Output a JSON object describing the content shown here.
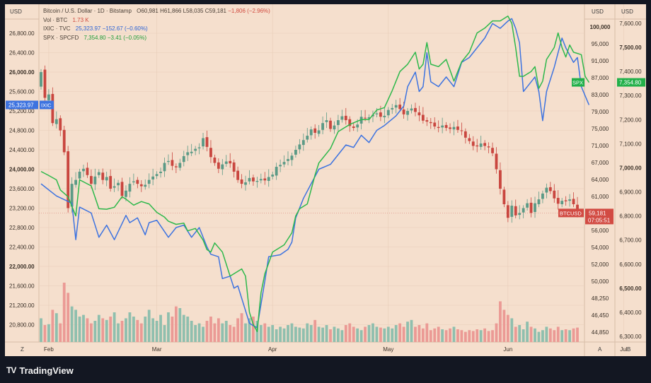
{
  "brand": {
    "logo_text": "TV",
    "name": "TradingView"
  },
  "chart_header": {
    "currency_left": "USD",
    "currency_mid": "USD",
    "currency_right": "USD",
    "scale_labels": [
      "A",
      "B"
    ],
    "zoom_label": "Z",
    "legend": [
      {
        "name": "Bitcoin / U.S. Dollar · 1D · Bitstamp",
        "values": [
          "O60,981",
          "H61,866",
          "L58,035",
          "C59,181",
          "−1,806 (−2.96%)"
        ]
      },
      {
        "name": "Vol · BTC",
        "values": [
          "1.73 K"
        ]
      },
      {
        "name": "IXIC · TVC",
        "values": [
          "25,323.97",
          "−152.67 (−0.60%)"
        ]
      },
      {
        "name": "SPX · SPCFD",
        "values": [
          "7,354.80",
          "−3.41 (−0.05%)"
        ]
      }
    ]
  },
  "colors": {
    "background": "#f5dfcd",
    "up": "#5b9a86",
    "down": "#c9463f",
    "vol_up": "#8fbfae",
    "vol_down": "#eb9a95",
    "ixic": "#3d73e0",
    "spx": "#2db84b",
    "grid": "#e8cdb9"
  },
  "chart_data": {
    "type": "candlestick",
    "x_ticks": [
      {
        "label": "Feb",
        "i": 2
      },
      {
        "label": "Mar",
        "i": 30
      },
      {
        "label": "Apr",
        "i": 60
      },
      {
        "label": "May",
        "i": 90
      },
      {
        "label": "Jun",
        "i": 121
      },
      {
        "label": "Jul",
        "i": 151
      }
    ],
    "ixic_axis": {
      "ticks": [
        "26,800.00",
        "26,400.00",
        "26,000.00",
        "25,600.00",
        "25,200.00",
        "24,800.00",
        "24,400.00",
        "24,000.00",
        "23,600.00",
        "23,200.00",
        "22,800.00",
        "22,400.00",
        "22,000.00",
        "21,600.00",
        "21,200.00",
        "20,800.00"
      ],
      "bold": [
        "26,000.00",
        "24,000.00",
        "22,000.00"
      ],
      "range": [
        20600,
        27200
      ]
    },
    "btc_axis": {
      "ticks": [
        "100,000",
        "95,000",
        "91,000",
        "87,000",
        "83,000",
        "79,000",
        "75,000",
        "71,000",
        "67,000",
        "64,000",
        "61,000",
        "58,000",
        "56,000",
        "54,000",
        "52,000",
        "50,000",
        "48,250",
        "46,450",
        "44,850"
      ],
      "bold": [
        "100,000"
      ]
    },
    "spx_axis": {
      "ticks": [
        "7,600.00",
        "7,500.00",
        "7,400.00",
        "7,300.00",
        "7,200.00",
        "7,100.00",
        "7,000.00",
        "6,900.00",
        "6,800.00",
        "6,700.00",
        "6,600.00",
        "6,500.00",
        "6,400.00",
        "6,300.00"
      ],
      "bold": [
        "7,500.00",
        "7,000.00",
        "6,500.00"
      ],
      "range": [
        6250,
        7650
      ]
    },
    "last_labels": {
      "ixic": {
        "value": "25,323.97",
        "tag": "IXIC"
      },
      "spx": {
        "value": "7,354.80",
        "tag": "SPX"
      },
      "btc": {
        "value": "59,181",
        "countdown": "07:05:51",
        "tag": "BTCUSD"
      }
    },
    "btc_close": [
      26000,
      25470,
      25540,
      24950,
      25030,
      24800,
      24350,
      23200,
      23700,
      23780,
      23950,
      24010,
      23880,
      23700,
      23850,
      23940,
      23780,
      23840,
      23600,
      23650,
      23720,
      23450,
      23560,
      23700,
      23750,
      23700,
      23650,
      23680,
      23780,
      23850,
      23900,
      23950,
      24130,
      24170,
      24070,
      24040,
      24130,
      24270,
      24350,
      24360,
      24420,
      24450,
      24640,
      24460,
      24250,
      24130,
      24010,
      24100,
      24160,
      24120,
      23950,
      23780,
      23700,
      23730,
      23820,
      23750,
      23760,
      23800,
      23770,
      23840,
      23890,
      24050,
      24090,
      24150,
      24210,
      24280,
      24400,
      24510,
      24600,
      24690,
      24820,
      24750,
      24800,
      24950,
      25010,
      24830,
      24900,
      25010,
      25090,
      25010,
      24890,
      24850,
      24920,
      25080,
      25050,
      25070,
      25120,
      25150,
      25080,
      25100,
      25220,
      25260,
      25320,
      25240,
      25130,
      25200,
      25250,
      25180,
      25110,
      25000,
      24980,
      24950,
      24880,
      24850,
      24900,
      24850,
      24830,
      24870,
      24810,
      24790,
      24650,
      24580,
      24480,
      24470,
      24530,
      24480,
      24450,
      24330,
      24000,
      23600,
      23280,
      23000,
      23250,
      23050,
      23100,
      23200,
      23300,
      23100,
      23300,
      23380,
      23500,
      23620,
      23550,
      23400,
      23290,
      23350,
      23340,
      23380,
      23280,
      23100
    ],
    "btc_open": [
      25700,
      26050,
      25420,
      25550,
      24930,
      25050,
      24810,
      24370,
      23230,
      23680,
      23810,
      23960,
      24030,
      23860,
      23690,
      23880,
      23930,
      23770,
      23860,
      23620,
      23670,
      23740,
      23430,
      23540,
      23730,
      23780,
      23690,
      23640,
      23700,
      23790,
      23860,
      23920,
      23960,
      24150,
      24190,
      24060,
      24030,
      24150,
      24290,
      24330,
      24380,
      24430,
      24470,
      24660,
      24440,
      24240,
      24140,
      24000,
      24110,
      24170,
      24140,
      23970,
      23790,
      23680,
      23750,
      23830,
      23740,
      23770,
      23810,
      23760,
      23850,
      23870,
      24060,
      24100,
      24170,
      24190,
      24300,
      24410,
      24500,
      24610,
      24700,
      24840,
      24730,
      24810,
      24970,
      25000,
      24820,
      24910,
      25020,
      25100,
      25030,
      24880,
      24860,
      24940,
      25060,
      25040,
      25090,
      25130,
      25170,
      25070,
      25110,
      25230,
      25270,
      25330,
      25230,
      25120,
      25210,
      25260,
      25170,
      25120,
      25010,
      24970,
      24960,
      24870,
      24860,
      24910,
      24860,
      24820,
      24880,
      24800,
      24780,
      24640,
      24570,
      24490,
      24460,
      24540,
      24470,
      24440,
      24320,
      23980,
      23580,
      23260,
      23020,
      23240,
      23060,
      23110,
      23210,
      23310,
      23120,
      23280,
      23390,
      23520,
      23630,
      23560,
      23410,
      23280,
      23360,
      23350,
      23390,
      23270
    ],
    "volume": [
      0.28,
      0.2,
      0.21,
      0.38,
      0.34,
      0.22,
      0.7,
      0.58,
      0.42,
      0.38,
      0.3,
      0.32,
      0.28,
      0.22,
      0.25,
      0.32,
      0.28,
      0.26,
      0.3,
      0.35,
      0.22,
      0.25,
      0.28,
      0.35,
      0.3,
      0.26,
      0.22,
      0.3,
      0.38,
      0.28,
      0.25,
      0.32,
      0.2,
      0.35,
      0.3,
      0.42,
      0.4,
      0.32,
      0.3,
      0.25,
      0.2,
      0.22,
      0.18,
      0.25,
      0.3,
      0.22,
      0.28,
      0.22,
      0.25,
      0.2,
      0.18,
      0.28,
      0.34,
      0.22,
      0.28,
      0.3,
      0.25,
      0.2,
      0.22,
      0.18,
      0.2,
      0.15,
      0.18,
      0.16,
      0.2,
      0.22,
      0.18,
      0.17,
      0.16,
      0.22,
      0.2,
      0.26,
      0.18,
      0.17,
      0.2,
      0.15,
      0.18,
      0.16,
      0.14,
      0.2,
      0.22,
      0.18,
      0.16,
      0.14,
      0.18,
      0.2,
      0.22,
      0.18,
      0.17,
      0.16,
      0.18,
      0.16,
      0.2,
      0.22,
      0.18,
      0.24,
      0.26,
      0.18,
      0.2,
      0.16,
      0.22,
      0.14,
      0.16,
      0.18,
      0.15,
      0.14,
      0.16,
      0.18,
      0.15,
      0.14,
      0.12,
      0.14,
      0.13,
      0.15,
      0.14,
      0.16,
      0.13,
      0.14,
      0.22,
      0.48,
      0.38,
      0.32,
      0.28,
      0.18,
      0.2,
      0.15,
      0.24,
      0.18,
      0.16,
      0.12,
      0.14,
      0.18,
      0.16,
      0.14,
      0.18,
      0.14,
      0.15,
      0.14,
      0.16,
      0.17
    ],
    "ixic_line": [
      [
        0,
        23700
      ],
      [
        4,
        23450
      ],
      [
        8,
        23300
      ],
      [
        9,
        22550
      ],
      [
        10,
        23220
      ],
      [
        13,
        23100
      ],
      [
        15,
        22600
      ],
      [
        17,
        22850
      ],
      [
        19,
        22550
      ],
      [
        22,
        23050
      ],
      [
        23,
        22900
      ],
      [
        25,
        23000
      ],
      [
        27,
        22650
      ],
      [
        28,
        22900
      ],
      [
        30,
        22950
      ],
      [
        33,
        22600
      ],
      [
        35,
        22800
      ],
      [
        37,
        22850
      ],
      [
        39,
        22600
      ],
      [
        41,
        22800
      ],
      [
        43,
        22400
      ],
      [
        44,
        22250
      ],
      [
        46,
        22200
      ],
      [
        47,
        21750
      ],
      [
        49,
        21800
      ],
      [
        50,
        21550
      ],
      [
        51,
        21600
      ],
      [
        54,
        20830
      ],
      [
        55,
        20780
      ],
      [
        56,
        20740
      ],
      [
        58,
        21700
      ],
      [
        59,
        22200
      ],
      [
        62,
        22240
      ],
      [
        64,
        22350
      ],
      [
        65,
        22500
      ],
      [
        66,
        23000
      ],
      [
        68,
        23400
      ],
      [
        70,
        23700
      ],
      [
        72,
        24000
      ],
      [
        75,
        24100
      ],
      [
        77,
        24300
      ],
      [
        79,
        24500
      ],
      [
        81,
        24450
      ],
      [
        83,
        24700
      ],
      [
        85,
        24550
      ],
      [
        87,
        24800
      ],
      [
        89,
        24900
      ],
      [
        92,
        25100
      ],
      [
        94,
        25300
      ],
      [
        95,
        25700
      ],
      [
        97,
        26000
      ],
      [
        98,
        25600
      ],
      [
        99,
        25700
      ],
      [
        100,
        26400
      ],
      [
        101,
        25800
      ],
      [
        103,
        25700
      ],
      [
        105,
        25900
      ],
      [
        107,
        25700
      ],
      [
        109,
        26200
      ],
      [
        111,
        26300
      ],
      [
        113,
        26500
      ],
      [
        115,
        26700
      ],
      [
        117,
        27000
      ],
      [
        119,
        26900
      ],
      [
        121,
        27050
      ],
      [
        122,
        27100
      ],
      [
        123,
        26900
      ],
      [
        124,
        26600
      ],
      [
        125,
        25600
      ],
      [
        127,
        25800
      ],
      [
        128,
        25900
      ],
      [
        129,
        25600
      ],
      [
        130,
        25000
      ],
      [
        131,
        25600
      ],
      [
        133,
        26100
      ],
      [
        134,
        26400
      ],
      [
        135,
        26700
      ],
      [
        136,
        26500
      ],
      [
        138,
        26200
      ],
      [
        139,
        26300
      ],
      [
        140,
        25700
      ],
      [
        142,
        25323.97
      ]
    ],
    "spx_line": [
      [
        0,
        6985
      ],
      [
        2,
        6968
      ],
      [
        4,
        6950
      ],
      [
        5,
        6908
      ],
      [
        7,
        6880
      ],
      [
        9,
        6800
      ],
      [
        10,
        6950
      ],
      [
        13,
        6925
      ],
      [
        15,
        6830
      ],
      [
        17,
        6828
      ],
      [
        19,
        6836
      ],
      [
        21,
        6880
      ],
      [
        22,
        6870
      ],
      [
        24,
        6845
      ],
      [
        26,
        6860
      ],
      [
        28,
        6850
      ],
      [
        30,
        6815
      ],
      [
        32,
        6795
      ],
      [
        33,
        6778
      ],
      [
        35,
        6765
      ],
      [
        37,
        6770
      ],
      [
        38,
        6738
      ],
      [
        40,
        6748
      ],
      [
        42,
        6700
      ],
      [
        43,
        6660
      ],
      [
        44,
        6650
      ],
      [
        45,
        6688
      ],
      [
        47,
        6650
      ],
      [
        49,
        6550
      ],
      [
        51,
        6570
      ],
      [
        52,
        6580
      ],
      [
        53,
        6550
      ],
      [
        54,
        6400
      ],
      [
        55,
        6350
      ],
      [
        56,
        6320
      ],
      [
        57,
        6480
      ],
      [
        58,
        6560
      ],
      [
        60,
        6650
      ],
      [
        63,
        6680
      ],
      [
        65,
        6730
      ],
      [
        66,
        6800
      ],
      [
        67,
        6830
      ],
      [
        69,
        6850
      ],
      [
        71,
        6970
      ],
      [
        72,
        7020
      ],
      [
        75,
        7080
      ],
      [
        77,
        7150
      ],
      [
        80,
        7180
      ],
      [
        83,
        7200
      ],
      [
        85,
        7200
      ],
      [
        87,
        7240
      ],
      [
        89,
        7250
      ],
      [
        91,
        7320
      ],
      [
        93,
        7400
      ],
      [
        95,
        7430
      ],
      [
        97,
        7480
      ],
      [
        98,
        7410
      ],
      [
        99,
        7430
      ],
      [
        100,
        7520
      ],
      [
        101,
        7430
      ],
      [
        103,
        7420
      ],
      [
        105,
        7450
      ],
      [
        107,
        7360
      ],
      [
        109,
        7440
      ],
      [
        111,
        7480
      ],
      [
        113,
        7560
      ],
      [
        115,
        7580
      ],
      [
        117,
        7610
      ],
      [
        119,
        7610
      ],
      [
        121,
        7630
      ],
      [
        122,
        7600
      ],
      [
        123,
        7500
      ],
      [
        124,
        7380
      ],
      [
        125,
        7380
      ],
      [
        127,
        7400
      ],
      [
        128,
        7420
      ],
      [
        129,
        7330
      ],
      [
        130,
        7360
      ],
      [
        131,
        7450
      ],
      [
        133,
        7500
      ],
      [
        134,
        7560
      ],
      [
        135,
        7500
      ],
      [
        136,
        7460
      ],
      [
        137,
        7510
      ],
      [
        138,
        7480
      ],
      [
        140,
        7470
      ],
      [
        141,
        7380
      ],
      [
        142,
        7354.8
      ]
    ]
  }
}
